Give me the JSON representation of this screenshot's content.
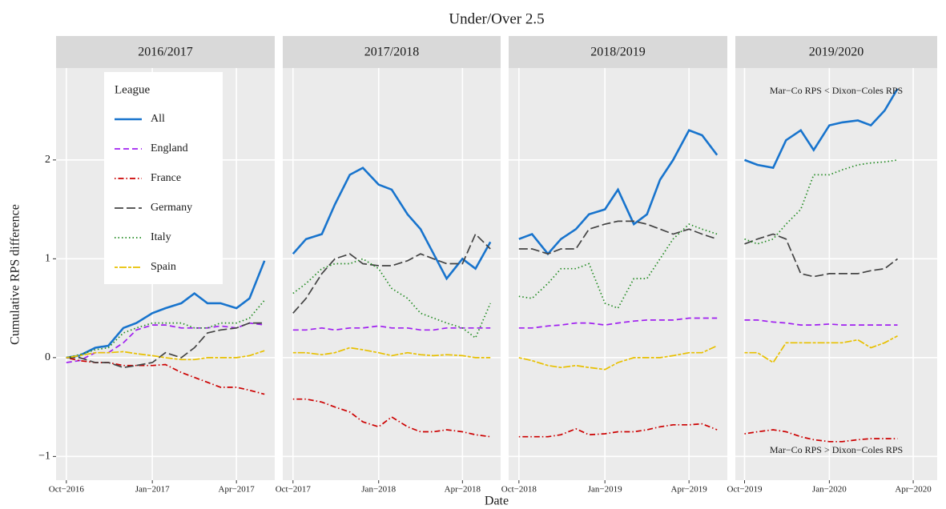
{
  "chart_data": {
    "type": "line",
    "title": "Under/Over 2.5",
    "x_label": "Date",
    "y_label": "Cumulative RPS difference",
    "legend_title": "League",
    "annotations": [
      "Mar−Co RPS < Dixon−Coles RPS",
      "Mar−Co RPS > Dixon−Coles RPS"
    ],
    "ylim": [
      -1.24,
      2.93
    ],
    "yticks": [
      {
        "value": -1,
        "label": "−1"
      },
      0,
      1,
      2
    ],
    "grid": true,
    "series": [
      {
        "name": "All",
        "color": "#1874cd",
        "linetype": "solid"
      },
      {
        "name": "England",
        "color": "#a020f0",
        "linetype": "dashed"
      },
      {
        "name": "France",
        "color": "#cc0000",
        "linetype": "dotdash"
      },
      {
        "name": "Germany",
        "color": "#444444",
        "linetype": "longdash"
      },
      {
        "name": "Italy",
        "color": "#228b22",
        "linetype": "dotted"
      },
      {
        "name": "Spain",
        "color": "#e8c000",
        "linetype": "twodash"
      }
    ],
    "panels": [
      {
        "title": "2016/2017",
        "xlim": [
          "2016-09-20",
          "2017-05-12"
        ],
        "xticks": [
          {
            "value": "2016-10-01",
            "label": "Oct−2016"
          },
          {
            "value": "2017-01-01",
            "label": "Jan−2017"
          },
          {
            "value": "2017-04-01",
            "label": "Apr−2017"
          }
        ],
        "x": [
          "2016-10-01",
          "2016-10-15",
          "2016-11-01",
          "2016-11-15",
          "2016-12-01",
          "2016-12-15",
          "2017-01-01",
          "2017-01-15",
          "2017-02-01",
          "2017-02-15",
          "2017-03-01",
          "2017-03-15",
          "2017-04-01",
          "2017-04-15",
          "2017-05-01"
        ],
        "values": [
          [
            0,
            0.02,
            0.1,
            0.12,
            0.3,
            0.35,
            0.45,
            0.5,
            0.55,
            0.65,
            0.55,
            0.55,
            0.5,
            0.6,
            0.98
          ],
          [
            -0.05,
            -0.03,
            0.05,
            0.05,
            0.15,
            0.28,
            0.33,
            0.33,
            0.3,
            0.3,
            0.3,
            0.32,
            0.3,
            0.35,
            0.33
          ],
          [
            0,
            -0.03,
            -0.05,
            -0.05,
            -0.08,
            -0.08,
            -0.08,
            -0.07,
            -0.15,
            -0.2,
            -0.25,
            -0.3,
            -0.3,
            -0.33,
            -0.37
          ],
          [
            0,
            0,
            -0.05,
            -0.05,
            -0.1,
            -0.08,
            -0.05,
            0.05,
            0,
            0.1,
            0.25,
            0.28,
            0.3,
            0.35,
            0.35
          ],
          [
            0,
            0.03,
            0.08,
            0.1,
            0.25,
            0.3,
            0.35,
            0.35,
            0.35,
            0.3,
            0.3,
            0.35,
            0.35,
            0.4,
            0.58
          ],
          [
            0,
            0.02,
            0.05,
            0.05,
            0.06,
            0.04,
            0.02,
            0,
            -0.02,
            -0.02,
            0,
            0,
            0,
            0.02,
            0.07
          ]
        ]
      },
      {
        "title": "2017/2018",
        "xlim": [
          "2017-09-20",
          "2018-05-12"
        ],
        "xticks": [
          {
            "value": "2017-10-01",
            "label": "Oct−2017"
          },
          {
            "value": "2018-01-01",
            "label": "Jan−2018"
          },
          {
            "value": "2018-04-01",
            "label": "Apr−2018"
          }
        ],
        "x": [
          "2017-10-01",
          "2017-10-15",
          "2017-11-01",
          "2017-11-15",
          "2017-12-01",
          "2017-12-15",
          "2018-01-01",
          "2018-01-15",
          "2018-02-01",
          "2018-02-15",
          "2018-03-01",
          "2018-03-15",
          "2018-04-01",
          "2018-04-15",
          "2018-05-01"
        ],
        "values": [
          [
            1.05,
            1.2,
            1.25,
            1.55,
            1.85,
            1.92,
            1.75,
            1.7,
            1.45,
            1.3,
            1.05,
            0.8,
            1.0,
            0.9,
            1.17
          ],
          [
            0.28,
            0.28,
            0.3,
            0.28,
            0.3,
            0.3,
            0.32,
            0.3,
            0.3,
            0.28,
            0.28,
            0.3,
            0.3,
            0.3,
            0.3
          ],
          [
            -0.42,
            -0.42,
            -0.45,
            -0.5,
            -0.55,
            -0.65,
            -0.7,
            -0.6,
            -0.7,
            -0.75,
            -0.75,
            -0.73,
            -0.75,
            -0.78,
            -0.8
          ],
          [
            0.45,
            0.6,
            0.85,
            1.0,
            1.05,
            0.95,
            0.93,
            0.93,
            0.98,
            1.05,
            1.0,
            0.95,
            0.95,
            1.25,
            1.1
          ],
          [
            0.65,
            0.75,
            0.9,
            0.95,
            0.95,
            1.0,
            0.9,
            0.7,
            0.6,
            0.45,
            0.4,
            0.35,
            0.3,
            0.2,
            0.55
          ],
          [
            0.05,
            0.05,
            0.03,
            0.05,
            0.1,
            0.08,
            0.05,
            0.02,
            0.05,
            0.03,
            0.02,
            0.03,
            0.02,
            0,
            0
          ]
        ]
      },
      {
        "title": "2018/2019",
        "xlim": [
          "2018-09-20",
          "2019-05-12"
        ],
        "xticks": [
          {
            "value": "2018-10-01",
            "label": "Oct−2018"
          },
          {
            "value": "2019-01-01",
            "label": "Jan−2019"
          },
          {
            "value": "2019-04-01",
            "label": "Apr−2019"
          }
        ],
        "x": [
          "2018-10-01",
          "2018-10-15",
          "2018-11-01",
          "2018-11-15",
          "2018-12-01",
          "2018-12-15",
          "2019-01-01",
          "2019-01-15",
          "2019-02-01",
          "2019-02-15",
          "2019-03-01",
          "2019-03-15",
          "2019-04-01",
          "2019-04-15",
          "2019-05-01"
        ],
        "values": [
          [
            1.2,
            1.25,
            1.05,
            1.2,
            1.3,
            1.45,
            1.5,
            1.7,
            1.35,
            1.45,
            1.8,
            2.0,
            2.3,
            2.25,
            2.05
          ],
          [
            0.3,
            0.3,
            0.32,
            0.33,
            0.35,
            0.35,
            0.33,
            0.35,
            0.37,
            0.38,
            0.38,
            0.38,
            0.4,
            0.4,
            0.4
          ],
          [
            -0.8,
            -0.8,
            -0.8,
            -0.78,
            -0.72,
            -0.78,
            -0.77,
            -0.75,
            -0.75,
            -0.73,
            -0.7,
            -0.68,
            -0.68,
            -0.67,
            -0.73
          ],
          [
            1.1,
            1.1,
            1.05,
            1.1,
            1.1,
            1.3,
            1.35,
            1.38,
            1.38,
            1.35,
            1.3,
            1.25,
            1.3,
            1.25,
            1.2
          ],
          [
            0.62,
            0.6,
            0.75,
            0.9,
            0.9,
            0.95,
            0.55,
            0.5,
            0.8,
            0.8,
            1.0,
            1.2,
            1.35,
            1.3,
            1.25
          ],
          [
            0,
            -0.03,
            -0.08,
            -0.1,
            -0.08,
            -0.1,
            -0.12,
            -0.05,
            0,
            0,
            0,
            0.02,
            0.05,
            0.05,
            0.12
          ]
        ]
      },
      {
        "title": "2019/2020",
        "xlim": [
          "2019-09-21",
          "2020-04-27"
        ],
        "xticks": [
          {
            "value": "2019-10-01",
            "label": "Oct−2019"
          },
          {
            "value": "2020-01-01",
            "label": "Jan−2020"
          },
          {
            "value": "2020-04-01",
            "label": "Apr−2020"
          }
        ],
        "x": [
          "2019-10-01",
          "2019-10-15",
          "2019-11-01",
          "2019-11-15",
          "2019-12-01",
          "2019-12-15",
          "2020-01-01",
          "2020-01-15",
          "2020-02-01",
          "2020-02-15",
          "2020-03-01",
          "2020-03-15"
        ],
        "values": [
          [
            2.0,
            1.95,
            1.92,
            2.2,
            2.3,
            2.1,
            2.35,
            2.38,
            2.4,
            2.35,
            2.5,
            2.72
          ],
          [
            0.38,
            0.38,
            0.36,
            0.35,
            0.33,
            0.33,
            0.34,
            0.33,
            0.33,
            0.33,
            0.33,
            0.33
          ],
          [
            -0.77,
            -0.75,
            -0.73,
            -0.75,
            -0.8,
            -0.83,
            -0.85,
            -0.85,
            -0.83,
            -0.82,
            -0.82,
            -0.82
          ],
          [
            1.15,
            1.2,
            1.25,
            1.2,
            0.85,
            0.82,
            0.85,
            0.85,
            0.85,
            0.88,
            0.9,
            1.0
          ],
          [
            1.2,
            1.15,
            1.2,
            1.35,
            1.5,
            1.85,
            1.85,
            1.9,
            1.95,
            1.97,
            1.98,
            2.0
          ],
          [
            0.05,
            0.05,
            -0.05,
            0.15,
            0.15,
            0.15,
            0.15,
            0.15,
            0.18,
            0.1,
            0.15,
            0.22
          ]
        ]
      }
    ]
  }
}
